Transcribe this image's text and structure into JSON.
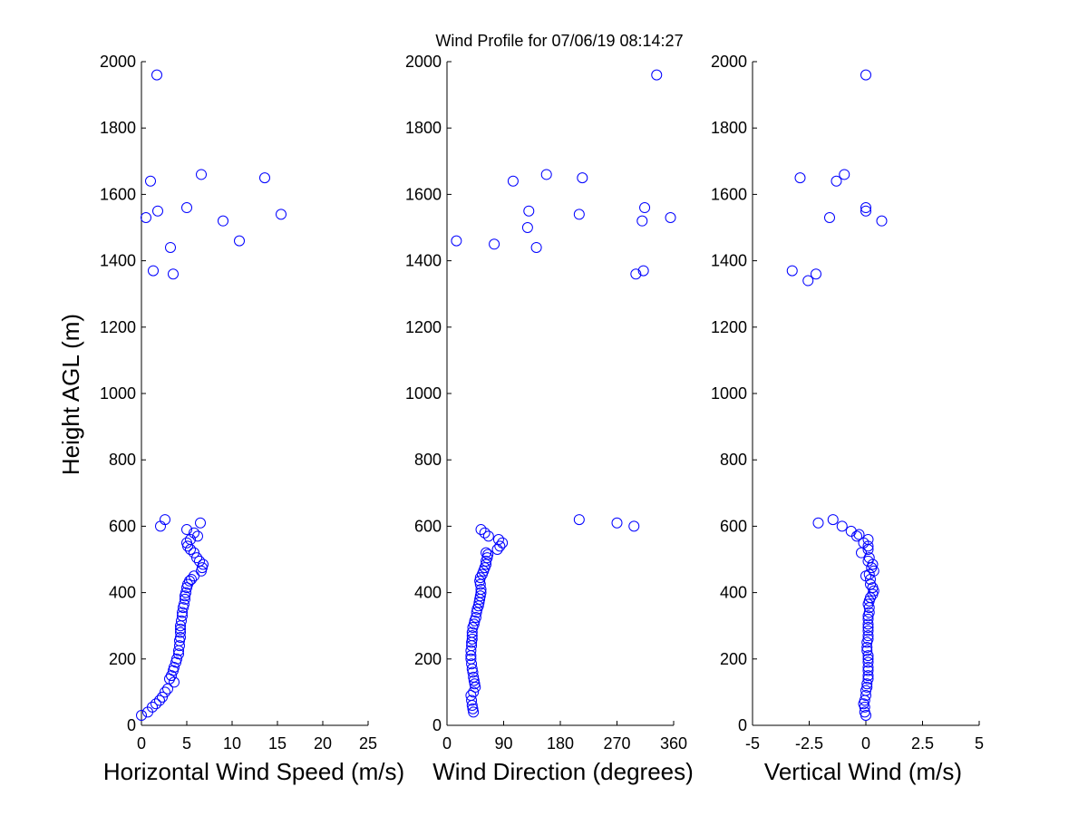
{
  "figure": {
    "title": "Wind Profile for  07/06/19 08:14:27",
    "ylabel": "Height AGL (m)",
    "marker_color": "#0000ff"
  },
  "chart_data": [
    {
      "type": "scatter",
      "xlabel": "Horizontal Wind Speed (m/s)",
      "xlim": [
        0,
        25
      ],
      "xticks": [
        0,
        5,
        10,
        15,
        20,
        25
      ],
      "xtick_labels": [
        "0",
        "5",
        "10",
        "15",
        "20",
        "25"
      ],
      "ylim": [
        0,
        2000
      ],
      "yticks": [
        0,
        200,
        400,
        600,
        800,
        1000,
        1200,
        1400,
        1600,
        1800,
        2000
      ],
      "ytick_labels": [
        "0",
        "200",
        "400",
        "600",
        "800",
        "1000",
        "1200",
        "1400",
        "1600",
        "1800",
        "2000"
      ],
      "points": [
        [
          0.0,
          30
        ],
        [
          0.7,
          40
        ],
        [
          1.2,
          55
        ],
        [
          1.6,
          65
        ],
        [
          2.0,
          75
        ],
        [
          2.3,
          85
        ],
        [
          2.6,
          100
        ],
        [
          2.9,
          110
        ],
        [
          3.6,
          130
        ],
        [
          3.1,
          140
        ],
        [
          3.3,
          150
        ],
        [
          3.5,
          165
        ],
        [
          3.6,
          175
        ],
        [
          3.8,
          190
        ],
        [
          3.9,
          200
        ],
        [
          4.1,
          215
        ],
        [
          4.1,
          225
        ],
        [
          4.2,
          240
        ],
        [
          4.2,
          255
        ],
        [
          4.3,
          265
        ],
        [
          4.3,
          280
        ],
        [
          4.3,
          290
        ],
        [
          4.3,
          300
        ],
        [
          4.4,
          315
        ],
        [
          4.5,
          330
        ],
        [
          4.5,
          340
        ],
        [
          4.6,
          355
        ],
        [
          4.7,
          365
        ],
        [
          4.8,
          380
        ],
        [
          4.8,
          390
        ],
        [
          4.9,
          400
        ],
        [
          5.0,
          415
        ],
        [
          5.1,
          425
        ],
        [
          5.3,
          435
        ],
        [
          5.5,
          440
        ],
        [
          5.8,
          450
        ],
        [
          6.6,
          465
        ],
        [
          6.7,
          475
        ],
        [
          6.8,
          485
        ],
        [
          6.4,
          495
        ],
        [
          6.1,
          505
        ],
        [
          5.8,
          520
        ],
        [
          5.4,
          530
        ],
        [
          5.1,
          540
        ],
        [
          5.0,
          550
        ],
        [
          5.4,
          560
        ],
        [
          6.2,
          570
        ],
        [
          5.8,
          580
        ],
        [
          5.0,
          590
        ],
        [
          6.5,
          610
        ],
        [
          2.6,
          620
        ],
        [
          2.1,
          600
        ],
        [
          1.3,
          1370
        ],
        [
          3.5,
          1360
        ],
        [
          3.2,
          1440
        ],
        [
          10.8,
          1460
        ],
        [
          0.5,
          1530
        ],
        [
          9.0,
          1520
        ],
        [
          15.4,
          1540
        ],
        [
          1.8,
          1550
        ],
        [
          5.0,
          1560
        ],
        [
          1.0,
          1640
        ],
        [
          13.6,
          1650
        ],
        [
          6.6,
          1660
        ],
        [
          1.7,
          1960
        ]
      ]
    },
    {
      "type": "scatter",
      "xlabel": "Wind Direction (degrees)",
      "xlim": [
        0,
        360
      ],
      "xticks": [
        0,
        90,
        180,
        270,
        360
      ],
      "xtick_labels": [
        "0",
        "90",
        "180",
        "270",
        "360"
      ],
      "ylim": [
        0,
        2000
      ],
      "yticks": [
        0,
        200,
        400,
        600,
        800,
        1000,
        1200,
        1400,
        1600,
        1800,
        2000
      ],
      "ytick_labels": [
        "0",
        "200",
        "400",
        "600",
        "800",
        "1000",
        "1200",
        "1400",
        "1600",
        "1800",
        "2000"
      ],
      "points": [
        [
          42,
          40
        ],
        [
          41,
          50
        ],
        [
          40,
          60
        ],
        [
          39,
          75
        ],
        [
          38,
          90
        ],
        [
          42,
          100
        ],
        [
          45,
          115
        ],
        [
          44,
          125
        ],
        [
          43,
          135
        ],
        [
          42,
          145
        ],
        [
          41,
          160
        ],
        [
          40,
          170
        ],
        [
          39,
          185
        ],
        [
          38,
          200
        ],
        [
          38,
          210
        ],
        [
          38,
          225
        ],
        [
          39,
          240
        ],
        [
          39,
          250
        ],
        [
          40,
          260
        ],
        [
          40,
          270
        ],
        [
          40,
          280
        ],
        [
          41,
          295
        ],
        [
          43,
          305
        ],
        [
          44,
          315
        ],
        [
          46,
          325
        ],
        [
          47,
          340
        ],
        [
          48,
          350
        ],
        [
          50,
          360
        ],
        [
          51,
          370
        ],
        [
          52,
          380
        ],
        [
          53,
          390
        ],
        [
          54,
          400
        ],
        [
          54,
          410
        ],
        [
          53,
          425
        ],
        [
          52,
          435
        ],
        [
          53,
          445
        ],
        [
          56,
          455
        ],
        [
          58,
          465
        ],
        [
          60,
          475
        ],
        [
          62,
          485
        ],
        [
          62,
          495
        ],
        [
          64,
          505
        ],
        [
          65,
          515
        ],
        [
          62,
          520
        ],
        [
          80,
          530
        ],
        [
          84,
          540
        ],
        [
          88,
          550
        ],
        [
          82,
          560
        ],
        [
          66,
          570
        ],
        [
          60,
          580
        ],
        [
          54,
          590
        ],
        [
          210,
          620
        ],
        [
          270,
          610
        ],
        [
          297,
          600
        ],
        [
          15,
          1460
        ],
        [
          75,
          1450
        ],
        [
          142,
          1440
        ],
        [
          128,
          1500
        ],
        [
          300,
          1360
        ],
        [
          312,
          1370
        ],
        [
          210,
          1540
        ],
        [
          130,
          1550
        ],
        [
          310,
          1520
        ],
        [
          355,
          1530
        ],
        [
          314,
          1560
        ],
        [
          105,
          1640
        ],
        [
          215,
          1650
        ],
        [
          158,
          1660
        ],
        [
          333,
          1960
        ]
      ]
    },
    {
      "type": "scatter",
      "xlabel": "Vertical Wind (m/s)",
      "xlim": [
        -5,
        5
      ],
      "xticks": [
        -5,
        -2.5,
        0,
        2.5,
        5
      ],
      "xtick_labels": [
        "-5",
        "-2.5",
        "0",
        "2.5",
        "5"
      ],
      "ylim": [
        0,
        2000
      ],
      "yticks": [
        0,
        200,
        400,
        600,
        800,
        1000,
        1200,
        1400,
        1600,
        1800,
        2000
      ],
      "ytick_labels": [
        "0",
        "200",
        "400",
        "600",
        "800",
        "1000",
        "1200",
        "1400",
        "1600",
        "1800",
        "2000"
      ],
      "points": [
        [
          0.0,
          30
        ],
        [
          -0.05,
          40
        ],
        [
          -0.05,
          55
        ],
        [
          -0.1,
          65
        ],
        [
          -0.05,
          75
        ],
        [
          0.0,
          90
        ],
        [
          0.0,
          105
        ],
        [
          0.05,
          115
        ],
        [
          0.05,
          125
        ],
        [
          0.1,
          140
        ],
        [
          0.1,
          150
        ],
        [
          0.1,
          165
        ],
        [
          0.1,
          175
        ],
        [
          0.1,
          190
        ],
        [
          0.1,
          200
        ],
        [
          0.1,
          210
        ],
        [
          0.05,
          225
        ],
        [
          0.05,
          235
        ],
        [
          0.05,
          250
        ],
        [
          0.1,
          260
        ],
        [
          0.1,
          270
        ],
        [
          0.1,
          285
        ],
        [
          0.1,
          295
        ],
        [
          0.1,
          305
        ],
        [
          0.1,
          320
        ],
        [
          0.1,
          330
        ],
        [
          0.15,
          340
        ],
        [
          0.15,
          355
        ],
        [
          0.1,
          365
        ],
        [
          0.15,
          375
        ],
        [
          0.2,
          385
        ],
        [
          0.3,
          395
        ],
        [
          0.35,
          405
        ],
        [
          0.3,
          415
        ],
        [
          0.2,
          425
        ],
        [
          0.2,
          440
        ],
        [
          0.0,
          450
        ],
        [
          0.15,
          455
        ],
        [
          0.35,
          465
        ],
        [
          0.25,
          475
        ],
        [
          0.3,
          485
        ],
        [
          0.1,
          495
        ],
        [
          0.15,
          505
        ],
        [
          -0.2,
          520
        ],
        [
          0.1,
          530
        ],
        [
          0.1,
          540
        ],
        [
          -0.1,
          550
        ],
        [
          0.1,
          560
        ],
        [
          -0.4,
          570
        ],
        [
          -0.3,
          575
        ],
        [
          -0.65,
          585
        ],
        [
          -1.05,
          600
        ],
        [
          -2.1,
          610
        ],
        [
          -1.45,
          620
        ],
        [
          -3.25,
          1370
        ],
        [
          -2.55,
          1340
        ],
        [
          -2.2,
          1360
        ],
        [
          -1.6,
          1530
        ],
        [
          0.0,
          1550
        ],
        [
          0.0,
          1560
        ],
        [
          0.7,
          1520
        ],
        [
          -2.9,
          1650
        ],
        [
          -1.3,
          1640
        ],
        [
          -0.95,
          1660
        ],
        [
          0.0,
          1960
        ]
      ]
    }
  ]
}
